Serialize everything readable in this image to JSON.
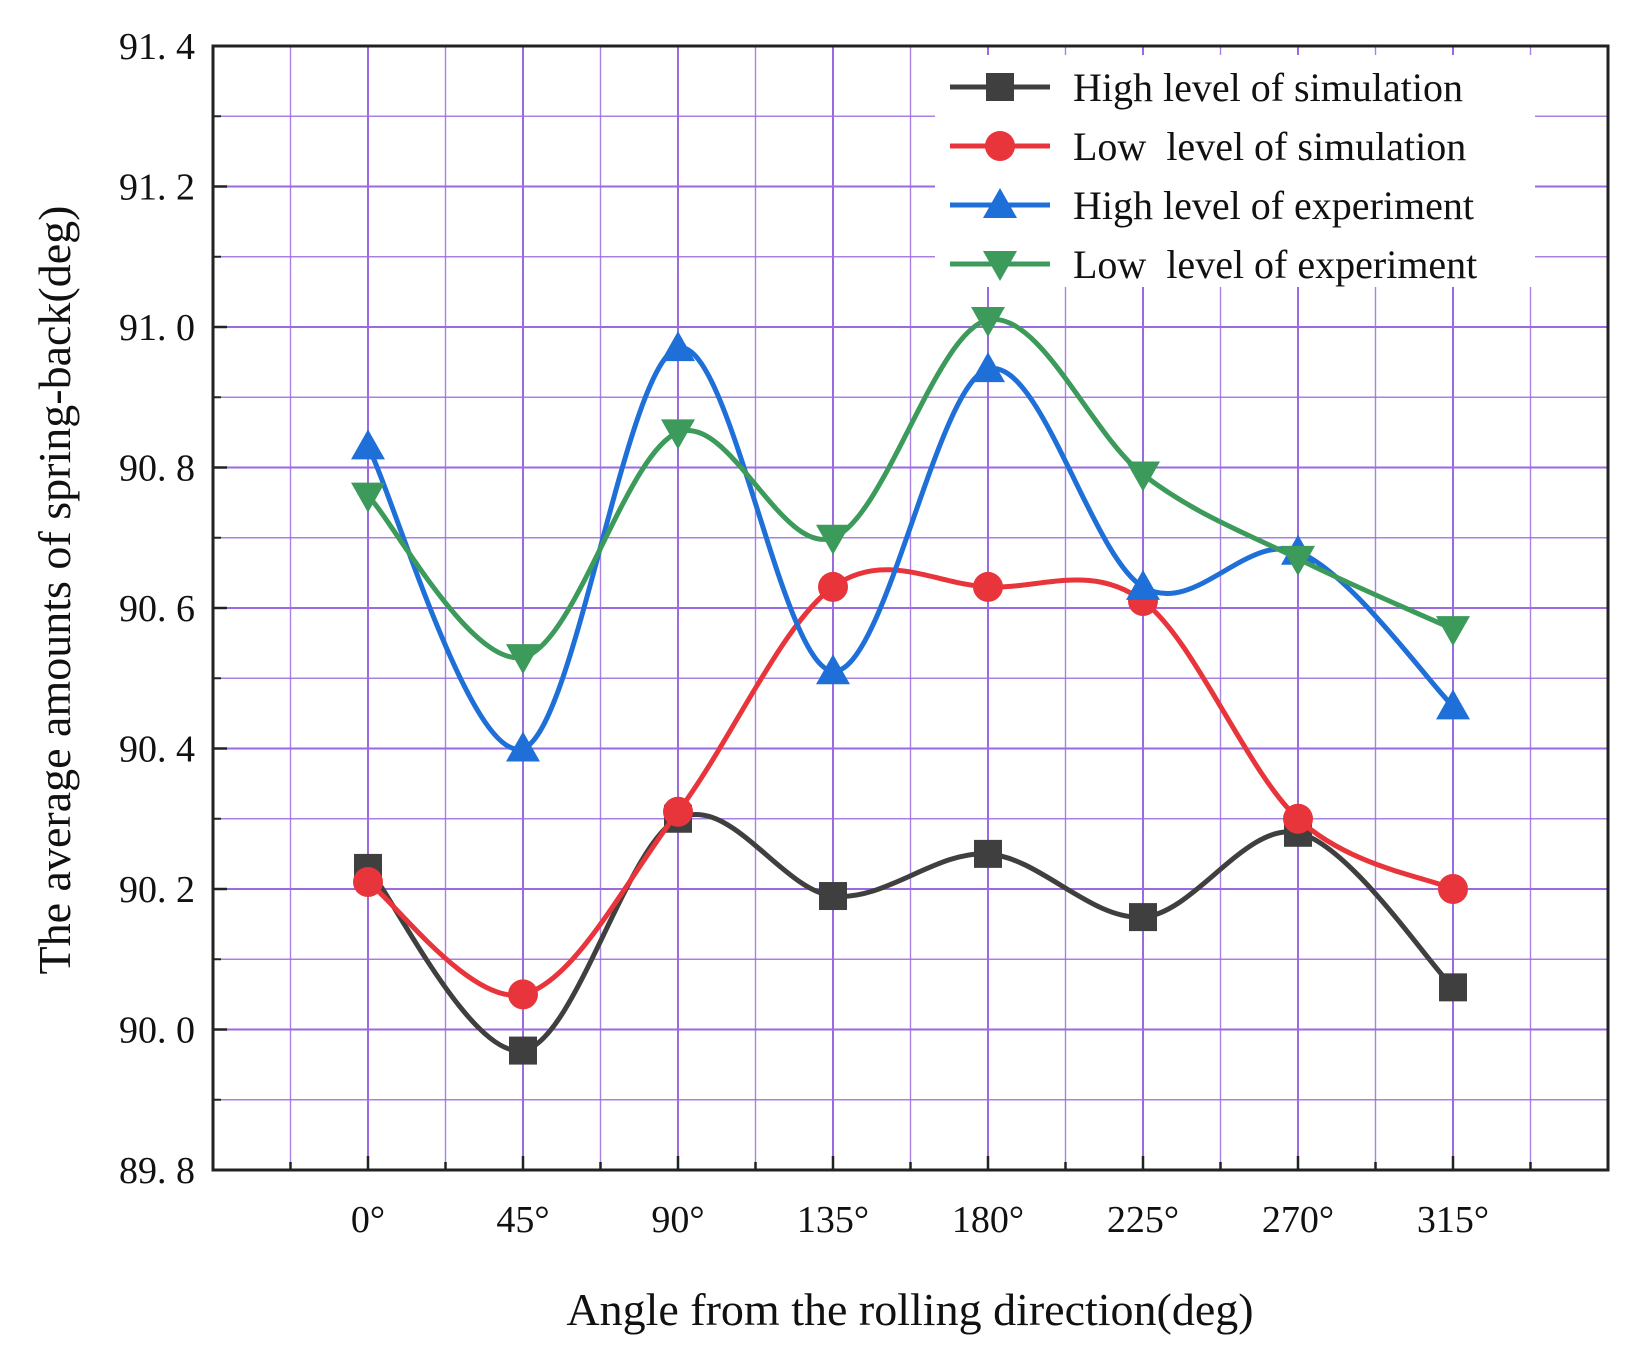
{
  "chart_data": {
    "type": "line",
    "title": "",
    "xlabel": "Angle from the rolling direction(deg)",
    "ylabel": "The average amounts of  spring-back(deg)",
    "categories": [
      "0°",
      "45°",
      "90°",
      "135°",
      "180°",
      "225°",
      "270°",
      "315°"
    ],
    "xlim": [
      -1,
      8
    ],
    "ylim": [
      89.8,
      91.4
    ],
    "yticks": [
      89.8,
      90.0,
      90.2,
      90.4,
      90.6,
      90.8,
      91.0,
      91.2,
      91.4
    ],
    "ytick_labels": [
      "89. 8",
      "90. 0",
      "90. 2",
      "90. 4",
      "90. 6",
      "90. 8",
      "91. 0",
      "91. 2",
      "91. 4"
    ],
    "grid": true,
    "legend_position": "top-right",
    "series": [
      {
        "name": "High level of simulation",
        "color": "#3f3f3f",
        "marker": "square",
        "values": [
          90.23,
          89.97,
          90.3,
          90.19,
          90.25,
          90.16,
          90.28,
          90.06
        ]
      },
      {
        "name": "Low  level of simulation",
        "color": "#e8353b",
        "marker": "circle",
        "values": [
          90.21,
          90.05,
          90.31,
          90.63,
          90.63,
          90.61,
          90.3,
          90.2
        ]
      },
      {
        "name": "High level of experiment",
        "color": "#1f6fd8",
        "marker": "triangle-up",
        "values": [
          90.83,
          90.4,
          90.97,
          90.51,
          90.94,
          90.63,
          90.68,
          90.46
        ]
      },
      {
        "name": "Low  level of experiment",
        "color": "#3c9a5a",
        "marker": "triangle-down",
        "values": [
          90.76,
          90.53,
          90.85,
          90.7,
          91.01,
          90.79,
          90.67,
          90.57
        ]
      }
    ],
    "colors": {
      "grid": "#9b6ae0",
      "axis": "#222222"
    }
  }
}
